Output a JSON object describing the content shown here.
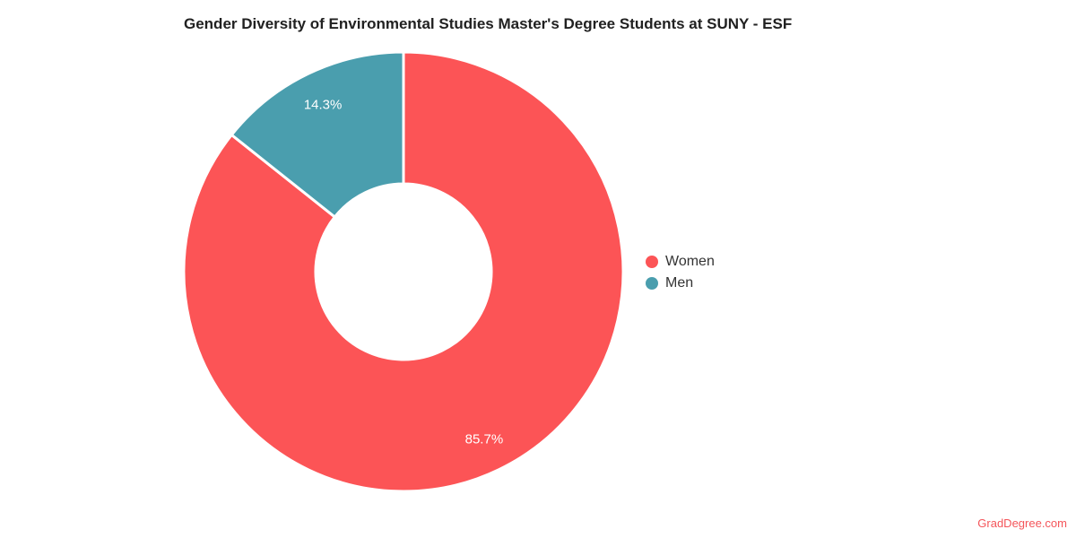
{
  "page": {
    "title": "Gender Diversity of Environmental Studies Master's Degree Students at SUNY - ESF",
    "watermark": "GradDegree.com",
    "background_color": "#ffffff",
    "title_color": "#212121",
    "watermark_color": "#f4555a"
  },
  "chart_data": {
    "type": "pie",
    "title": "Gender Diversity of Environmental Studies Master's Degree Students at SUNY - ESF",
    "donut": true,
    "inner_radius_ratio": 0.4,
    "start_angle_deg": 0,
    "direction": "clockwise",
    "legend_position": "right",
    "slice_border_color": "#ffffff",
    "slice_label_color": "#ffffff",
    "slices": [
      {
        "label": "Women",
        "value": 85.7,
        "display": "85.7%",
        "color": "#fc5456"
      },
      {
        "label": "Men",
        "value": 14.3,
        "display": "14.3%",
        "color": "#4a9eae"
      }
    ]
  }
}
